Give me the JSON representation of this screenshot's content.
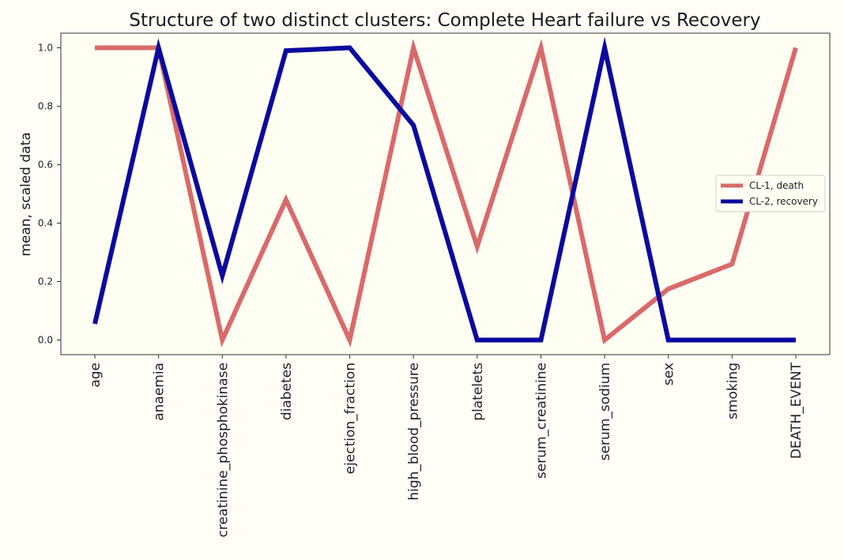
{
  "chart_data": {
    "type": "line",
    "title": "Structure of two distinct clusters: Complete Heart failure vs Recovery",
    "ylabel": "mean, scaled data",
    "xlabel": "",
    "categories": [
      "age",
      "anaemia",
      "creatinine_phosphokinase",
      "diabetes",
      "ejection_fraction",
      "high_blood_pressure",
      "platelets",
      "serum_creatinine",
      "serum_sodium",
      "sex",
      "smoking",
      "DEATH_EVENT"
    ],
    "series": [
      {
        "name": "CL-1, death",
        "color": "#d96a6a",
        "values": [
          1.0,
          1.0,
          0.0,
          0.48,
          0.0,
          1.0,
          0.32,
          1.0,
          0.0,
          0.175,
          0.26,
          1.0
        ]
      },
      {
        "name": "CL-2, recovery",
        "color": "#0a0aa0",
        "values": [
          0.055,
          1.0,
          0.22,
          0.99,
          1.0,
          0.735,
          0.0,
          0.0,
          1.0,
          0.0,
          0.0,
          0.0
        ]
      }
    ],
    "ylim": [
      -0.05,
      1.05
    ],
    "yticks": [
      0.0,
      0.2,
      0.4,
      0.6,
      0.8,
      1.0
    ],
    "ytick_labels": [
      "0.0",
      "0.2",
      "0.4",
      "0.6",
      "0.8",
      "1.0"
    ],
    "grid": false,
    "legend": "center-right"
  }
}
